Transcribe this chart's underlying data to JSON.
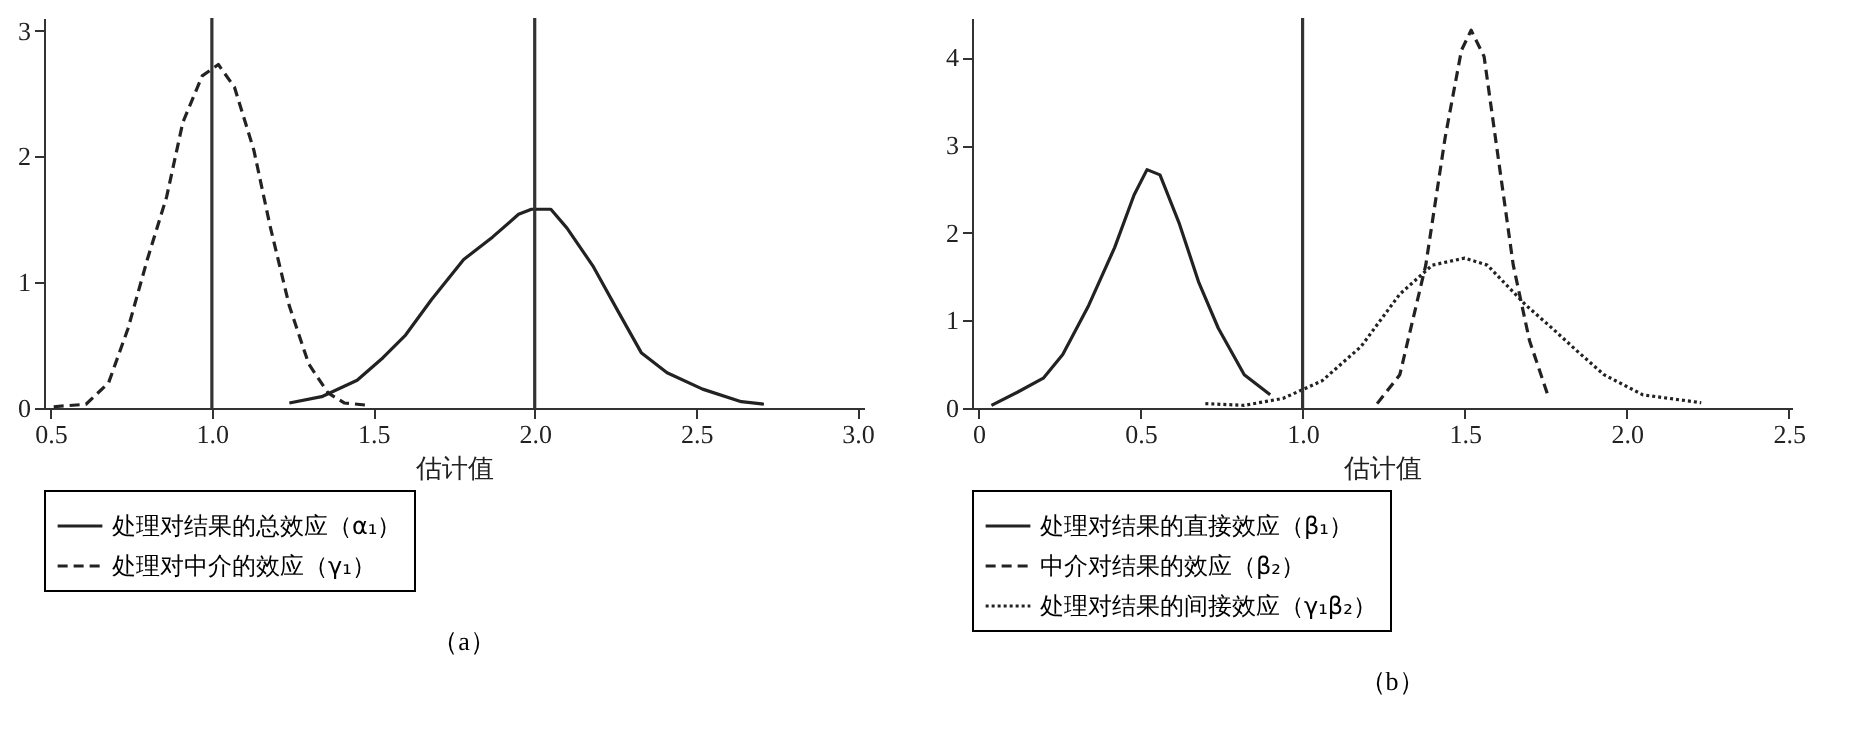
{
  "chart_data": [
    {
      "type": "line",
      "xlabel": "估计值",
      "annotations": [
        "（a）"
      ],
      "legend": "bottom",
      "xlim": [
        0.48,
        3.02
      ],
      "ylim": [
        0,
        3.1
      ],
      "xticks": [
        0.5,
        {
          "value": 1,
          "label": "1.0"
        },
        1.5,
        {
          "value": 2,
          "label": "2.0"
        },
        2.5,
        {
          "value": 3,
          "label": "3.0"
        }
      ],
      "yticks": [
        0,
        1,
        2,
        3
      ],
      "ref_lines": [
        {
          "axis": "x",
          "value": 1,
          "color": "#333333"
        },
        {
          "axis": "x",
          "value": 2,
          "color": "#333333"
        }
      ],
      "series": [
        {
          "name": "处理对结果的总效应（α₁）",
          "color": "#222222",
          "line_style": "solid",
          "x": [
            1.24,
            1.34,
            1.45,
            1.53,
            1.6,
            1.68,
            1.78,
            1.87,
            1.95,
            1.99,
            2.05,
            2.1,
            2.18,
            2.26,
            2.33,
            2.41,
            2.52,
            2.64,
            2.71
          ],
          "values": [
            0.04,
            0.09,
            0.22,
            0.4,
            0.58,
            0.86,
            1.18,
            1.36,
            1.54,
            1.58,
            1.58,
            1.43,
            1.13,
            0.76,
            0.44,
            0.28,
            0.15,
            0.05,
            0.03
          ]
        },
        {
          "name": "处理对中介的效应（γ₁）",
          "color": "#222222",
          "line_style": "dashed",
          "x": [
            0.51,
            0.61,
            0.68,
            0.74,
            0.8,
            0.86,
            0.91,
            0.97,
            1.02,
            1.07,
            1.13,
            1.18,
            1.24,
            1.3,
            1.36,
            1.41,
            1.49
          ],
          "values": [
            0.01,
            0.03,
            0.2,
            0.63,
            1.18,
            1.68,
            2.27,
            2.64,
            2.73,
            2.55,
            2.05,
            1.45,
            0.81,
            0.35,
            0.12,
            0.04,
            0.02
          ]
        }
      ]
    },
    {
      "type": "line",
      "xlabel": "估计值",
      "annotations": [
        "（b）"
      ],
      "legend": "bottom",
      "xlim": [
        -0.02,
        2.51
      ],
      "ylim": [
        0,
        4.45
      ],
      "xticks": [
        0,
        0.5,
        {
          "value": 1,
          "label": "1.0"
        },
        1.5,
        {
          "value": 2,
          "label": "2.0"
        },
        2.5
      ],
      "yticks": [
        0,
        1,
        2,
        3,
        4
      ],
      "ref_lines": [
        {
          "axis": "x",
          "value": 1,
          "color": "#333333"
        }
      ],
      "series": [
        {
          "name": "处理对结果的直接效应（β₁）",
          "color": "#222222",
          "line_style": "solid",
          "x": [
            0.04,
            0.12,
            0.2,
            0.26,
            0.34,
            0.42,
            0.48,
            0.52,
            0.56,
            0.62,
            0.68,
            0.74,
            0.82,
            0.9
          ],
          "values": [
            0.03,
            0.18,
            0.34,
            0.61,
            1.17,
            1.83,
            2.43,
            2.72,
            2.66,
            2.1,
            1.43,
            0.91,
            0.38,
            0.15
          ]
        },
        {
          "name": "中介对结果的效应（β₂）",
          "color": "#222222",
          "line_style": "dashed",
          "x": [
            1.23,
            1.3,
            1.38,
            1.44,
            1.49,
            1.52,
            1.56,
            1.6,
            1.65,
            1.7,
            1.76
          ],
          "values": [
            0.05,
            0.38,
            1.63,
            3.09,
            4.08,
            4.31,
            4.01,
            2.95,
            1.63,
            0.77,
            0.11
          ]
        },
        {
          "name": "处理对结果的间接效应（γ₁β₂）",
          "color": "#222222",
          "line_style": "dotted",
          "x": [
            0.7,
            0.82,
            0.94,
            1.06,
            1.18,
            1.3,
            1.4,
            1.5,
            1.57,
            1.69,
            1.77,
            1.85,
            1.93,
            2.05,
            2.23
          ],
          "values": [
            0.05,
            0.03,
            0.11,
            0.31,
            0.7,
            1.3,
            1.63,
            1.71,
            1.63,
            1.17,
            0.91,
            0.64,
            0.38,
            0.15,
            0.06
          ]
        }
      ]
    }
  ]
}
